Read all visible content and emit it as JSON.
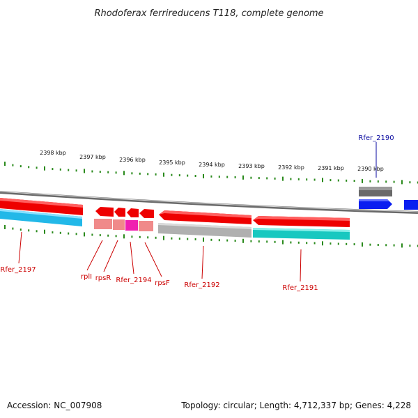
{
  "title": "Rhodoferax ferrireducens T118, complete genome",
  "footer": {
    "accession": "Accession: NC_007908",
    "summary": "Topology: circular; Length: 4,712,337 bp; Genes: 4,228"
  },
  "ruler_labels": [
    "2398 kbp",
    "2397 kbp",
    "2396 kbp",
    "2395 kbp",
    "2394 kbp",
    "2393 kbp",
    "2392 kbp",
    "2391 kbp",
    "2390 kbp"
  ],
  "colors": {
    "tick": "#2a8a1c",
    "backbone": "#8c8c8c",
    "red_gene": "#ee0000",
    "blue_gene": "#0a1ef0",
    "cyan_band": "#22b8e8",
    "teal_band": "#18c8c0",
    "pink_band": "#f08a8a",
    "magenta_band": "#f020b0",
    "gray_band": "#b0b0b0",
    "dark_gray_band": "#6a6a6a",
    "label_red": "#cc0000",
    "label_blue": "#0a0aa0"
  },
  "genes": [
    "Rfer_2197",
    "rplI",
    "rpsR",
    "Rfer_2194",
    "rpsF",
    "Rfer_2192",
    "Rfer_2191",
    "Rfer_2190"
  ]
}
